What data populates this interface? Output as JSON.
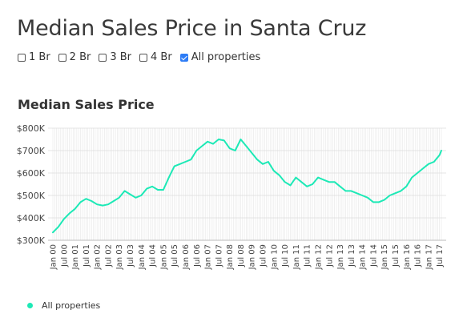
{
  "page": {
    "title": "Median Sales Price in Santa Cruz",
    "subtitle": "Median Sales Price"
  },
  "filters": [
    {
      "label": "1 Br",
      "checked": false
    },
    {
      "label": "2 Br",
      "checked": false
    },
    {
      "label": "3 Br",
      "checked": false
    },
    {
      "label": "4 Br",
      "checked": false
    },
    {
      "label": "All properties",
      "checked": true
    }
  ],
  "colors": {
    "line": "#1de9b6",
    "checkbox_accent": "#2d7cf6",
    "grid": "#e6e6e6"
  },
  "legend": {
    "label": "All properties"
  },
  "chart_data": {
    "type": "line",
    "title": "Median Sales Price",
    "xlabel": "",
    "ylabel": "",
    "grid": true,
    "legend_position": "bottom-left",
    "x_ticks": [
      "Jan 00",
      "Jul 00",
      "Jan 01",
      "Jul 01",
      "Jan 02",
      "Jul 02",
      "Jan 03",
      "Jul 03",
      "Jan 04",
      "Jul 04",
      "Jan 05",
      "Jul 05",
      "Jan 06",
      "Jul 06",
      "Jan 07",
      "Jul 07",
      "Jan 08",
      "Jul 08",
      "Jan 09",
      "Jul 09",
      "Jan 10",
      "Jul 10",
      "Jan 11",
      "Jul 11",
      "Jan 12",
      "Jul 12",
      "Jan 13",
      "Jul 13",
      "Jan 14",
      "Jul 14",
      "Jan 15",
      "Jul 15",
      "Jan 16",
      "Jul 16",
      "Jan 17",
      "Jul 17"
    ],
    "y_ticks": [
      "$300K",
      "$400K",
      "$500K",
      "$600K",
      "$700K",
      "$800K"
    ],
    "ylim": [
      300000,
      800000
    ],
    "xlim": [
      "Jan 00",
      "Aug 17"
    ],
    "series": [
      {
        "name": "All properties",
        "x": [
          "Jan 00",
          "Apr 00",
          "Jul 00",
          "Oct 00",
          "Jan 01",
          "Apr 01",
          "Jul 01",
          "Oct 01",
          "Jan 02",
          "Apr 02",
          "Jul 02",
          "Oct 02",
          "Jan 03",
          "Apr 03",
          "Jul 03",
          "Oct 03",
          "Jan 04",
          "Apr 04",
          "Jul 04",
          "Oct 04",
          "Jan 05",
          "Apr 05",
          "Jul 05",
          "Oct 05",
          "Jan 06",
          "Apr 06",
          "Jul 06",
          "Oct 06",
          "Jan 07",
          "Apr 07",
          "Jul 07",
          "Oct 07",
          "Jan 08",
          "Apr 08",
          "Jul 08",
          "Oct 08",
          "Jan 09",
          "Apr 09",
          "Jul 09",
          "Oct 09",
          "Jan 10",
          "Apr 10",
          "Jul 10",
          "Oct 10",
          "Jan 11",
          "Apr 11",
          "Jul 11",
          "Oct 11",
          "Jan 12",
          "Apr 12",
          "Jul 12",
          "Oct 12",
          "Jan 13",
          "Apr 13",
          "Jul 13",
          "Oct 13",
          "Jan 14",
          "Apr 14",
          "Jul 14",
          "Oct 14",
          "Jan 15",
          "Apr 15",
          "Jul 15",
          "Oct 15",
          "Jan 16",
          "Apr 16",
          "Jul 16",
          "Oct 16",
          "Jan 17",
          "Apr 17",
          "Jul 17",
          "Aug 17"
        ],
        "values": [
          335000,
          360000,
          395000,
          420000,
          440000,
          470000,
          485000,
          475000,
          460000,
          455000,
          460000,
          475000,
          490000,
          520000,
          505000,
          490000,
          500000,
          530000,
          540000,
          525000,
          525000,
          580000,
          630000,
          640000,
          650000,
          660000,
          700000,
          720000,
          740000,
          730000,
          750000,
          745000,
          710000,
          700000,
          750000,
          720000,
          690000,
          660000,
          640000,
          650000,
          610000,
          590000,
          560000,
          545000,
          580000,
          560000,
          540000,
          550000,
          580000,
          570000,
          560000,
          560000,
          540000,
          520000,
          520000,
          510000,
          500000,
          490000,
          470000,
          470000,
          480000,
          500000,
          510000,
          520000,
          540000,
          580000,
          600000,
          620000,
          640000,
          650000,
          680000,
          700000
        ]
      }
    ]
  }
}
